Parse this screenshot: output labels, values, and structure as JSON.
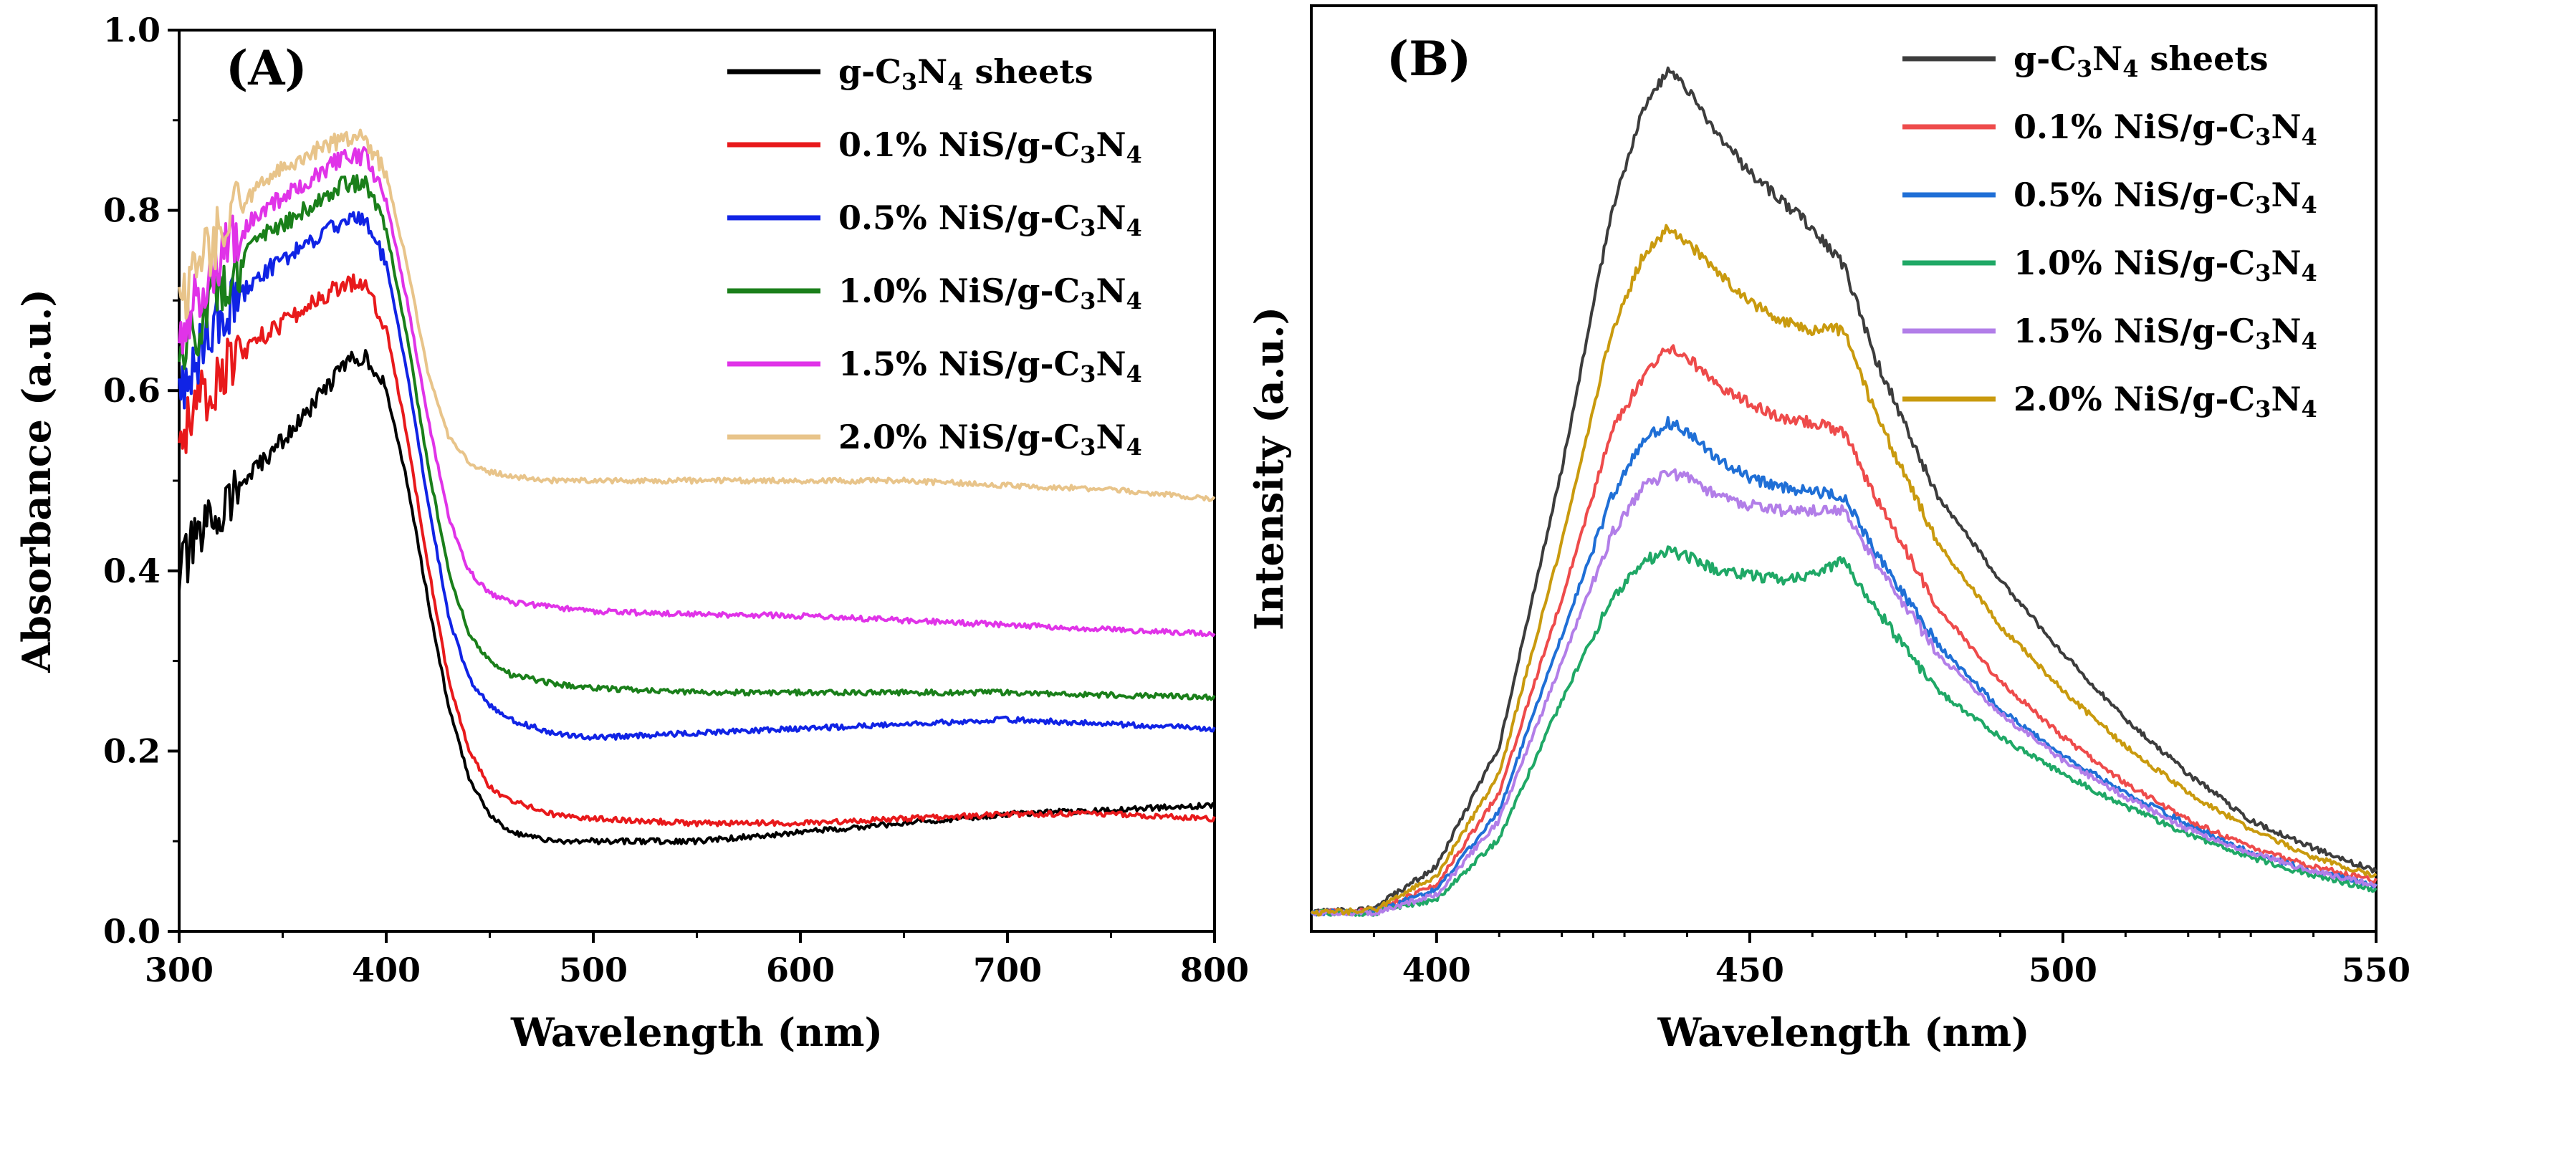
{
  "chart_data": [
    {
      "panel": "(A)",
      "type": "line",
      "xlabel": "Wavelength (nm)",
      "ylabel": "Absorbance (a.u.)",
      "xlim": [
        300,
        800
      ],
      "ylim": [
        0,
        1.0
      ],
      "xticks": [
        300,
        400,
        500,
        600,
        700,
        800
      ],
      "yticks": [
        0.0,
        0.2,
        0.4,
        0.6,
        0.8,
        1.0
      ],
      "xtick_labels": [
        "300",
        "400",
        "500",
        "600",
        "700",
        "800"
      ],
      "ytick_labels": [
        "0.0",
        "0.2",
        "0.4",
        "0.6",
        "0.8",
        "1.0"
      ],
      "legend_position": "top-right",
      "series": [
        {
          "name": "g-C3N4 sheets",
          "label": "g-C",
          "sub1": "3",
          "mid": "N",
          "sub2": "4",
          "tail": " sheets",
          "color": "#000000",
          "x": [
            300,
            320,
            340,
            360,
            380,
            390,
            400,
            410,
            420,
            430,
            440,
            450,
            460,
            480,
            500,
            550,
            600,
            650,
            700,
            750,
            800
          ],
          "y": [
            0.4,
            0.47,
            0.52,
            0.57,
            0.63,
            0.64,
            0.6,
            0.5,
            0.37,
            0.25,
            0.17,
            0.13,
            0.11,
            0.1,
            0.1,
            0.1,
            0.11,
            0.12,
            0.13,
            0.135,
            0.14
          ]
        },
        {
          "name": "0.1% NiS/g-C3N4",
          "label": "0.1% NiS/g-C",
          "sub1": "3",
          "mid": "N",
          "sub2": "4",
          "tail": "",
          "color": "#e8191b",
          "x": [
            300,
            320,
            340,
            360,
            380,
            390,
            400,
            410,
            420,
            430,
            440,
            450,
            460,
            480,
            500,
            550,
            600,
            650,
            700,
            750,
            800
          ],
          "y": [
            0.55,
            0.62,
            0.66,
            0.69,
            0.72,
            0.72,
            0.67,
            0.55,
            0.41,
            0.28,
            0.2,
            0.16,
            0.145,
            0.13,
            0.125,
            0.12,
            0.12,
            0.125,
            0.13,
            0.13,
            0.125
          ]
        },
        {
          "name": "0.5% NiS/g-C3N4",
          "label": "0.5% NiS/g-C",
          "sub1": "3",
          "mid": "N",
          "sub2": "4",
          "tail": "",
          "color": "#1023e5",
          "x": [
            300,
            320,
            340,
            360,
            380,
            390,
            400,
            410,
            420,
            430,
            440,
            450,
            460,
            480,
            500,
            550,
            600,
            650,
            700,
            750,
            800
          ],
          "y": [
            0.6,
            0.68,
            0.73,
            0.76,
            0.79,
            0.79,
            0.74,
            0.62,
            0.48,
            0.35,
            0.28,
            0.25,
            0.235,
            0.22,
            0.215,
            0.22,
            0.225,
            0.23,
            0.235,
            0.23,
            0.225
          ]
        },
        {
          "name": "1.0% NiS/g-C3N4",
          "label": "1.0% NiS/g-C",
          "sub1": "3",
          "mid": "N",
          "sub2": "4",
          "tail": "",
          "color": "#1a7f1a",
          "x": [
            300,
            320,
            340,
            360,
            380,
            390,
            400,
            410,
            420,
            430,
            440,
            450,
            460,
            480,
            500,
            550,
            600,
            650,
            700,
            750,
            800
          ],
          "y": [
            0.63,
            0.72,
            0.77,
            0.8,
            0.83,
            0.83,
            0.78,
            0.66,
            0.52,
            0.4,
            0.33,
            0.3,
            0.285,
            0.275,
            0.27,
            0.265,
            0.265,
            0.265,
            0.265,
            0.262,
            0.26
          ]
        },
        {
          "name": "1.5% NiS/g-C3N4",
          "label": "1.5% NiS/g-C",
          "sub1": "3",
          "mid": "N",
          "sub2": "4",
          "tail": "",
          "color": "#e033e8",
          "x": [
            300,
            320,
            340,
            360,
            380,
            390,
            400,
            410,
            420,
            430,
            440,
            450,
            460,
            480,
            500,
            550,
            600,
            650,
            700,
            750,
            800
          ],
          "y": [
            0.66,
            0.75,
            0.8,
            0.83,
            0.86,
            0.86,
            0.81,
            0.7,
            0.57,
            0.46,
            0.4,
            0.375,
            0.365,
            0.36,
            0.355,
            0.352,
            0.35,
            0.345,
            0.34,
            0.335,
            0.33
          ]
        },
        {
          "name": "2.0% NiS/g-C3N4",
          "label": "2.0% NiS/g-C",
          "sub1": "3",
          "mid": "N",
          "sub2": "4",
          "tail": "",
          "color": "#e8c48a",
          "x": [
            300,
            320,
            340,
            360,
            380,
            390,
            400,
            410,
            420,
            430,
            440,
            450,
            460,
            480,
            500,
            550,
            600,
            650,
            700,
            750,
            800
          ],
          "y": [
            0.7,
            0.78,
            0.83,
            0.86,
            0.88,
            0.88,
            0.84,
            0.74,
            0.62,
            0.55,
            0.52,
            0.51,
            0.505,
            0.5,
            0.5,
            0.5,
            0.5,
            0.5,
            0.495,
            0.49,
            0.48
          ]
        }
      ]
    },
    {
      "panel": "(B)",
      "type": "line",
      "xlabel": "Wavelength (nm)",
      "ylabel": "Intensity (a.u.)",
      "xlim": [
        380,
        550
      ],
      "ylim": [
        0,
        1.0
      ],
      "xticks": [
        400,
        450,
        500,
        550
      ],
      "xtick_labels": [
        "400",
        "450",
        "500",
        "550"
      ],
      "yticks_shown": false,
      "legend_position": "top-right",
      "series": [
        {
          "name": "g-C3N4 sheets",
          "label": "g-C",
          "sub1": "3",
          "mid": "N",
          "sub2": "4",
          "tail": " sheets",
          "color": "#3c3c3c",
          "x": [
            380,
            390,
            400,
            410,
            420,
            428,
            433,
            437,
            440,
            445,
            450,
            455,
            460,
            465,
            470,
            480,
            490,
            500,
            510,
            520,
            530,
            540,
            550
          ],
          "y": [
            0.02,
            0.025,
            0.07,
            0.2,
            0.5,
            0.78,
            0.89,
            0.93,
            0.91,
            0.86,
            0.82,
            0.79,
            0.76,
            0.72,
            0.62,
            0.47,
            0.38,
            0.3,
            0.23,
            0.17,
            0.12,
            0.09,
            0.065
          ]
        },
        {
          "name": "0.1% NiS/g-C3N4",
          "label": "0.1% NiS/g-C",
          "sub1": "3",
          "mid": "N",
          "sub2": "4",
          "tail": "",
          "color": "#ee4b4b",
          "x": [
            380,
            390,
            400,
            410,
            420,
            428,
            433,
            437,
            440,
            445,
            450,
            455,
            460,
            465,
            470,
            480,
            490,
            500,
            510,
            520,
            530,
            540,
            550
          ],
          "y": [
            0.02,
            0.022,
            0.05,
            0.15,
            0.36,
            0.54,
            0.6,
            0.63,
            0.62,
            0.59,
            0.57,
            0.555,
            0.55,
            0.54,
            0.47,
            0.35,
            0.27,
            0.21,
            0.16,
            0.12,
            0.09,
            0.07,
            0.055
          ]
        },
        {
          "name": "0.5% NiS/g-C3N4",
          "label": "0.5% NiS/g-C",
          "sub1": "3",
          "mid": "N",
          "sub2": "4",
          "tail": "",
          "color": "#1f6fd6",
          "x": [
            380,
            390,
            400,
            410,
            420,
            428,
            433,
            437,
            440,
            445,
            450,
            455,
            460,
            465,
            470,
            480,
            490,
            500,
            510,
            520,
            530,
            540,
            550
          ],
          "y": [
            0.02,
            0.021,
            0.045,
            0.13,
            0.32,
            0.47,
            0.53,
            0.55,
            0.54,
            0.51,
            0.49,
            0.48,
            0.475,
            0.47,
            0.41,
            0.31,
            0.24,
            0.19,
            0.15,
            0.115,
            0.085,
            0.065,
            0.05
          ]
        },
        {
          "name": "1.0% NiS/g-C3N4",
          "label": "1.0% NiS/g-C",
          "sub1": "3",
          "mid": "N",
          "sub2": "4",
          "tail": "",
          "color": "#1fa866",
          "x": [
            380,
            390,
            400,
            410,
            420,
            428,
            433,
            437,
            440,
            445,
            450,
            455,
            460,
            465,
            470,
            480,
            490,
            500,
            510,
            520,
            530,
            540,
            550
          ],
          "y": [
            0.02,
            0.02,
            0.035,
            0.1,
            0.25,
            0.36,
            0.4,
            0.41,
            0.405,
            0.39,
            0.385,
            0.38,
            0.385,
            0.4,
            0.35,
            0.26,
            0.21,
            0.17,
            0.135,
            0.105,
            0.08,
            0.06,
            0.045
          ]
        },
        {
          "name": "1.5% NiS/g-C3N4",
          "label": "1.5% NiS/g-C",
          "sub1": "3",
          "mid": "N",
          "sub2": "4",
          "tail": "",
          "color": "#b27ee8",
          "x": [
            380,
            390,
            400,
            410,
            420,
            428,
            433,
            437,
            440,
            445,
            450,
            455,
            460,
            465,
            470,
            480,
            490,
            500,
            510,
            520,
            530,
            540,
            550
          ],
          "y": [
            0.02,
            0.02,
            0.04,
            0.12,
            0.29,
            0.43,
            0.48,
            0.495,
            0.49,
            0.47,
            0.46,
            0.455,
            0.455,
            0.455,
            0.4,
            0.3,
            0.235,
            0.185,
            0.145,
            0.11,
            0.085,
            0.065,
            0.05
          ]
        },
        {
          "name": "2.0% NiS/g-C3N4",
          "label": "2.0% NiS/g-C",
          "sub1": "3",
          "mid": "N",
          "sub2": "4",
          "tail": "",
          "color": "#c99a0e",
          "x": [
            380,
            390,
            400,
            410,
            420,
            428,
            433,
            437,
            440,
            445,
            450,
            455,
            460,
            465,
            470,
            480,
            490,
            500,
            510,
            520,
            530,
            540,
            550
          ],
          "y": [
            0.02,
            0.023,
            0.06,
            0.17,
            0.42,
            0.65,
            0.73,
            0.76,
            0.745,
            0.71,
            0.68,
            0.66,
            0.65,
            0.65,
            0.56,
            0.42,
            0.33,
            0.26,
            0.2,
            0.15,
            0.11,
            0.08,
            0.06
          ]
        }
      ]
    }
  ]
}
